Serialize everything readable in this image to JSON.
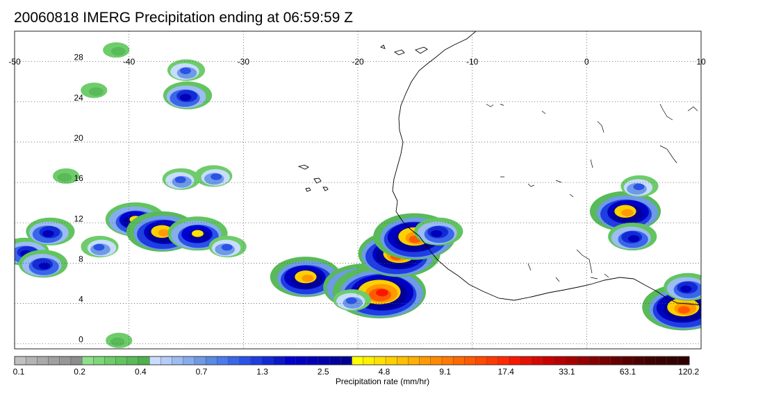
{
  "title": "20060818 IMERG Precipitation ending at 06:59:59 Z",
  "map": {
    "lon_range": [
      -50,
      10
    ],
    "lat_range": [
      -0.5,
      31
    ],
    "lon_tick_labels": [
      "-50",
      "-40",
      "-30",
      "-20",
      "-10",
      "0",
      "10"
    ],
    "lon_ticks": [
      -50,
      -40,
      -30,
      -20,
      -10,
      0,
      10
    ],
    "lat_tick_labels": [
      "0",
      "4",
      "8",
      "12",
      "16",
      "20",
      "24",
      "28"
    ],
    "lat_ticks": [
      0,
      4,
      8,
      12,
      16,
      20,
      24,
      28
    ],
    "gridlines": "dotted",
    "coastline_color": "#000000"
  },
  "colorbar": {
    "unit_label": "Precipitation rate (mm/hr)",
    "tick_labels": [
      "0.1",
      "0.2",
      "0.4",
      "0.7",
      "1.3",
      "2.5",
      "4.8",
      "9.1",
      "17.4",
      "33.1",
      "63.1",
      "120.2"
    ],
    "colors": [
      "#c0c0c0",
      "#b4b4b4",
      "#aaaaaa",
      "#a0a0a0",
      "#969696",
      "#8c8c8c",
      "#8ee08a",
      "#7ed67a",
      "#6ecc6a",
      "#62c460",
      "#58ba58",
      "#4eb04e",
      "#c8dcff",
      "#b4ccfa",
      "#9cbcf2",
      "#86acee",
      "#6e9ae6",
      "#5a8ae2",
      "#4a7aee",
      "#3a66ea",
      "#2a52e6",
      "#1e3ee2",
      "#122ad6",
      "#0a18c8",
      "#0000d0",
      "#0000c4",
      "#0000b8",
      "#0000ac",
      "#0000a0",
      "#000094",
      "#ffff00",
      "#fff000",
      "#ffe000",
      "#ffd000",
      "#ffc000",
      "#ffb000",
      "#ff9a00",
      "#ff8a00",
      "#ff7a00",
      "#ff6a00",
      "#ff5a00",
      "#ff4a00",
      "#ff3a00",
      "#ff2a00",
      "#f81800",
      "#e81000",
      "#d80800",
      "#c80000",
      "#b80000",
      "#a80000",
      "#980000",
      "#880000",
      "#780000",
      "#680000",
      "#5a0000",
      "#4c0000",
      "#400000",
      "#3a0000",
      "#340000",
      "#2e0000"
    ]
  },
  "precip_cells": [
    {
      "lon": -49.0,
      "lat": 9.0,
      "level": 3
    },
    {
      "lon": -47.5,
      "lat": 7.8,
      "level": 3
    },
    {
      "lon": -47.0,
      "lat": 11.0,
      "level": 3
    },
    {
      "lon": -42.5,
      "lat": 9.5,
      "level": 2
    },
    {
      "lon": -39.5,
      "lat": 12.2,
      "level": 4
    },
    {
      "lon": -37.0,
      "lat": 11.0,
      "level": 5
    },
    {
      "lon": -34.0,
      "lat": 10.8,
      "level": 4
    },
    {
      "lon": -31.5,
      "lat": 9.5,
      "level": 2
    },
    {
      "lon": -24.5,
      "lat": 6.5,
      "level": 5
    },
    {
      "lon": -19.5,
      "lat": 5.5,
      "level": 6
    },
    {
      "lon": -18.0,
      "lat": 5.0,
      "level": 7
    },
    {
      "lon": -20.5,
      "lat": 4.2,
      "level": 2
    },
    {
      "lon": -16.5,
      "lat": 8.8,
      "level": 6
    },
    {
      "lon": -15.0,
      "lat": 10.5,
      "level": 6
    },
    {
      "lon": -13.0,
      "lat": 11.0,
      "level": 3
    },
    {
      "lon": 3.5,
      "lat": 13.0,
      "level": 5
    },
    {
      "lon": 4.0,
      "lat": 10.5,
      "level": 3
    },
    {
      "lon": 4.5,
      "lat": 15.5,
      "level": 2
    },
    {
      "lon": 8.5,
      "lat": 3.5,
      "level": 6
    },
    {
      "lon": 8.8,
      "lat": 5.5,
      "level": 3
    },
    {
      "lon": -41.0,
      "lat": 29.0,
      "level": 1
    },
    {
      "lon": -35.0,
      "lat": 27.0,
      "level": 2
    },
    {
      "lon": -35.0,
      "lat": 24.5,
      "level": 3
    },
    {
      "lon": -43.0,
      "lat": 25.0,
      "level": 1
    },
    {
      "lon": -35.5,
      "lat": 16.2,
      "level": 2
    },
    {
      "lon": -32.5,
      "lat": 16.5,
      "level": 2
    },
    {
      "lon": -45.5,
      "lat": 16.5,
      "level": 1
    },
    {
      "lon": -41.0,
      "lat": 0.2,
      "level": 1
    }
  ]
}
